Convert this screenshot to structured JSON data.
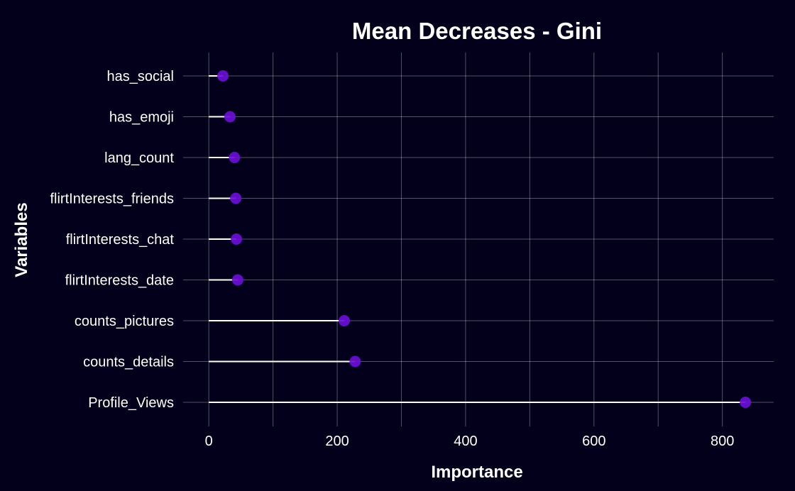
{
  "colors": {
    "background": "#02001a",
    "text": "#ffffff",
    "grid": "#ffffff",
    "stem": "#ffffff",
    "point": "#6a0fd6"
  },
  "chart_data": {
    "type": "lollipop",
    "orientation": "horizontal",
    "title": "Mean Decreases - Gini",
    "xlabel": "Importance",
    "ylabel": "Variables",
    "categories": [
      "has_social",
      "has_emoji",
      "lang_count",
      "flirtInterests_friends",
      "flirtInterests_chat",
      "flirtInterests_date",
      "counts_pictures",
      "counts_details",
      "Profile_Views"
    ],
    "values": [
      22,
      33,
      40,
      42,
      43,
      45,
      211,
      228,
      836
    ],
    "xlim": [
      -40,
      880
    ],
    "x_ticks": [
      0,
      200,
      400,
      600,
      800
    ],
    "x_minor_grid": [
      100,
      300,
      500,
      700
    ],
    "grid": true,
    "legend": "none"
  }
}
